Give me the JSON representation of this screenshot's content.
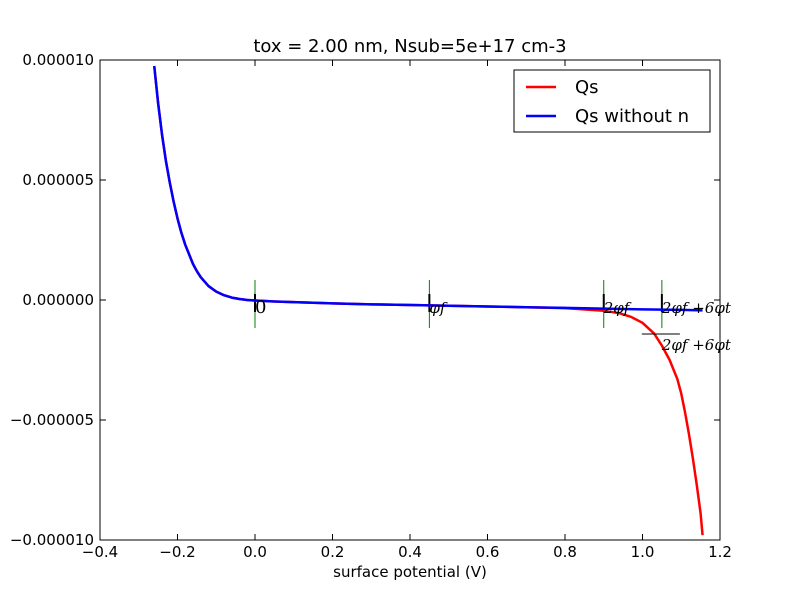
{
  "chart_data": {
    "type": "line",
    "title": "tox =  2.00 nm, Nsub=5e+17 cm-3",
    "xlabel": "surface potential (V)",
    "ylabel": "",
    "xlim": [
      -0.4,
      1.2
    ],
    "ylim": [
      -1e-05,
      1e-05
    ],
    "x_ticks": [
      -0.4,
      -0.2,
      0.0,
      0.2,
      0.4,
      0.6,
      0.8,
      1.0,
      1.2
    ],
    "x_tick_labels": [
      "−0.4",
      "−0.2",
      "0.0",
      "0.2",
      "0.4",
      "0.6",
      "0.8",
      "1.0",
      "1.2"
    ],
    "y_ticks": [
      1e-05,
      5e-06,
      0.0,
      -5e-06,
      -1e-05
    ],
    "y_tick_labels": [
      "0.000010",
      "0.000005",
      "0.000000",
      "−0.000005",
      "−0.000010"
    ],
    "grid": false,
    "legend_position": "top-right",
    "series": [
      {
        "name": "Qs",
        "color": "#ff0000",
        "x": [
          -0.26,
          -0.25,
          -0.24,
          -0.23,
          -0.22,
          -0.21,
          -0.2,
          -0.19,
          -0.18,
          -0.17,
          -0.16,
          -0.15,
          -0.14,
          -0.12,
          -0.1,
          -0.08,
          -0.06,
          -0.04,
          -0.02,
          0.0,
          0.05,
          0.1,
          0.2,
          0.3,
          0.4,
          0.5,
          0.6,
          0.7,
          0.8,
          0.9,
          0.94,
          0.97,
          1.0,
          1.03,
          1.05,
          1.07,
          1.09,
          1.1,
          1.11,
          1.12,
          1.13,
          1.14,
          1.15,
          1.155
        ],
        "y": [
          9.75e-06,
          8.2e-06,
          6.9e-06,
          5.8e-06,
          4.9e-06,
          4.1e-06,
          3.4e-06,
          2.8e-06,
          2.3e-06,
          1.9e-06,
          1.5e-06,
          1.2e-06,
          9.5e-07,
          5.8e-07,
          3.5e-07,
          2e-07,
          1e-07,
          4e-08,
          0.0,
          -2e-08,
          -6e-08,
          -9e-08,
          -1.4e-07,
          -1.8e-07,
          -2.1e-07,
          -2.4e-07,
          -2.7e-07,
          -3e-07,
          -3.4e-07,
          -4.5e-07,
          -5.5e-07,
          -7e-07,
          -9.5e-07,
          -1.4e-06,
          -1.9e-06,
          -2.5e-06,
          -3.3e-06,
          -3.9e-06,
          -4.7e-06,
          -5.6e-06,
          -6.6e-06,
          -7.7e-06,
          -8.9e-06,
          -9.8e-06
        ]
      },
      {
        "name": "Qs without n",
        "color": "#0000ff",
        "x": [
          -0.26,
          -0.25,
          -0.24,
          -0.23,
          -0.22,
          -0.21,
          -0.2,
          -0.19,
          -0.18,
          -0.17,
          -0.16,
          -0.15,
          -0.14,
          -0.12,
          -0.1,
          -0.08,
          -0.06,
          -0.04,
          -0.02,
          0.0,
          0.05,
          0.1,
          0.2,
          0.3,
          0.4,
          0.5,
          0.6,
          0.7,
          0.8,
          0.9,
          1.0,
          1.05,
          1.1,
          1.155
        ],
        "y": [
          9.75e-06,
          8.2e-06,
          6.9e-06,
          5.8e-06,
          4.9e-06,
          4.1e-06,
          3.4e-06,
          2.8e-06,
          2.3e-06,
          1.9e-06,
          1.5e-06,
          1.2e-06,
          9.5e-07,
          5.8e-07,
          3.5e-07,
          2e-07,
          1e-07,
          4e-08,
          0.0,
          -2e-08,
          -6e-08,
          -9e-08,
          -1.4e-07,
          -1.8e-07,
          -2.1e-07,
          -2.4e-07,
          -2.7e-07,
          -3e-07,
          -3.3e-07,
          -3.6e-07,
          -3.9e-07,
          -4e-07,
          -4.1e-07,
          -4.3e-07
        ]
      }
    ],
    "annotations": [
      {
        "x": 0.0,
        "label": "0"
      },
      {
        "x": 0.45,
        "label": "φf"
      },
      {
        "x": 0.9,
        "label": "2φf"
      },
      {
        "x": 1.05,
        "label": "2φf +6φt"
      }
    ],
    "annotation_color": "#008000"
  }
}
